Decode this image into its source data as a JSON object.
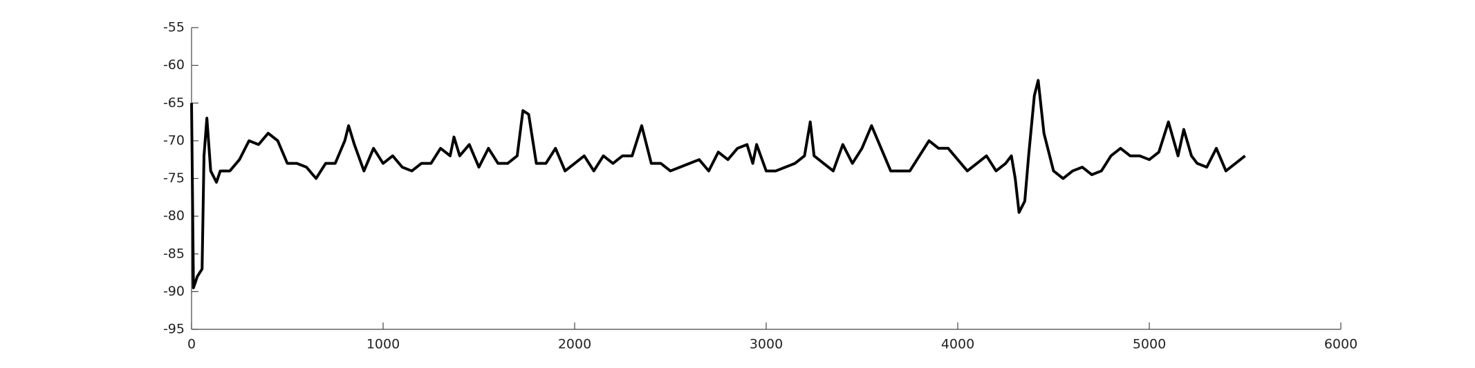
{
  "chart_data": {
    "type": "line",
    "x": [
      0,
      10,
      30,
      55,
      65,
      80,
      100,
      130,
      150,
      200,
      250,
      300,
      350,
      400,
      450,
      500,
      550,
      600,
      650,
      700,
      750,
      800,
      820,
      850,
      900,
      950,
      1000,
      1050,
      1100,
      1150,
      1200,
      1250,
      1300,
      1350,
      1370,
      1400,
      1450,
      1500,
      1550,
      1600,
      1650,
      1700,
      1730,
      1760,
      1800,
      1850,
      1900,
      1950,
      2000,
      2050,
      2100,
      2150,
      2200,
      2250,
      2300,
      2350,
      2400,
      2450,
      2500,
      2550,
      2600,
      2650,
      2700,
      2750,
      2800,
      2850,
      2900,
      2930,
      2950,
      3000,
      3050,
      3100,
      3150,
      3200,
      3230,
      3250,
      3300,
      3350,
      3400,
      3450,
      3500,
      3550,
      3600,
      3650,
      3700,
      3750,
      3800,
      3850,
      3900,
      3950,
      4000,
      4050,
      4100,
      4150,
      4200,
      4250,
      4280,
      4300,
      4320,
      4350,
      4370,
      4400,
      4420,
      4450,
      4500,
      4550,
      4600,
      4650,
      4700,
      4750,
      4800,
      4850,
      4900,
      4950,
      5000,
      5050,
      5100,
      5150,
      5180,
      5220,
      5250,
      5300,
      5350,
      5400,
      5450,
      5500
    ],
    "series": [
      {
        "color": "#000000",
        "values": [
          -65,
          -89.5,
          -88,
          -87,
          -72,
          -67,
          -74,
          -75.5,
          -74,
          -74,
          -72.5,
          -70,
          -70.5,
          -69,
          -70,
          -73,
          -73,
          -73.5,
          -75,
          -73,
          -73,
          -70,
          -68,
          -70.5,
          -74,
          -71,
          -73,
          -72,
          -73.5,
          -74,
          -73,
          -73,
          -71,
          -72,
          -69.5,
          -72,
          -70.5,
          -73.5,
          -71,
          -73,
          -73,
          -72,
          -66,
          -66.5,
          -73,
          -73,
          -71,
          -74,
          -73,
          -72,
          -74,
          -72,
          -73,
          -72,
          -72,
          -68,
          -73,
          -73,
          -74,
          -73.5,
          -73,
          -72.5,
          -74,
          -71.5,
          -72.5,
          -71,
          -70.5,
          -73,
          -70.5,
          -74,
          -74,
          -73.5,
          -73,
          -72,
          -67.5,
          -72,
          -73,
          -74,
          -70.5,
          -73,
          -71,
          -68,
          -71,
          -74,
          -74,
          -74,
          -72,
          -70,
          -71,
          -71,
          -72.5,
          -74,
          -73,
          -72,
          -74,
          -73,
          -72,
          -75,
          -79.5,
          -78,
          -72,
          -64,
          -62,
          -69,
          -74,
          -75,
          -74,
          -73.5,
          -74.5,
          -74,
          -72,
          -71,
          -72,
          -72,
          -72.5,
          -71.5,
          -67.5,
          -72,
          -68.5,
          -72,
          -73,
          -73.5,
          -71,
          -74,
          -73,
          -72
        ]
      }
    ],
    "xlim": [
      0,
      6000
    ],
    "xticks": [
      0,
      1000,
      2000,
      3000,
      4000,
      5000,
      6000
    ],
    "ylim": [
      -95,
      -55
    ],
    "yticks": [
      -95,
      -90,
      -85,
      -80,
      -75,
      -70,
      -65,
      -60,
      -55
    ]
  }
}
